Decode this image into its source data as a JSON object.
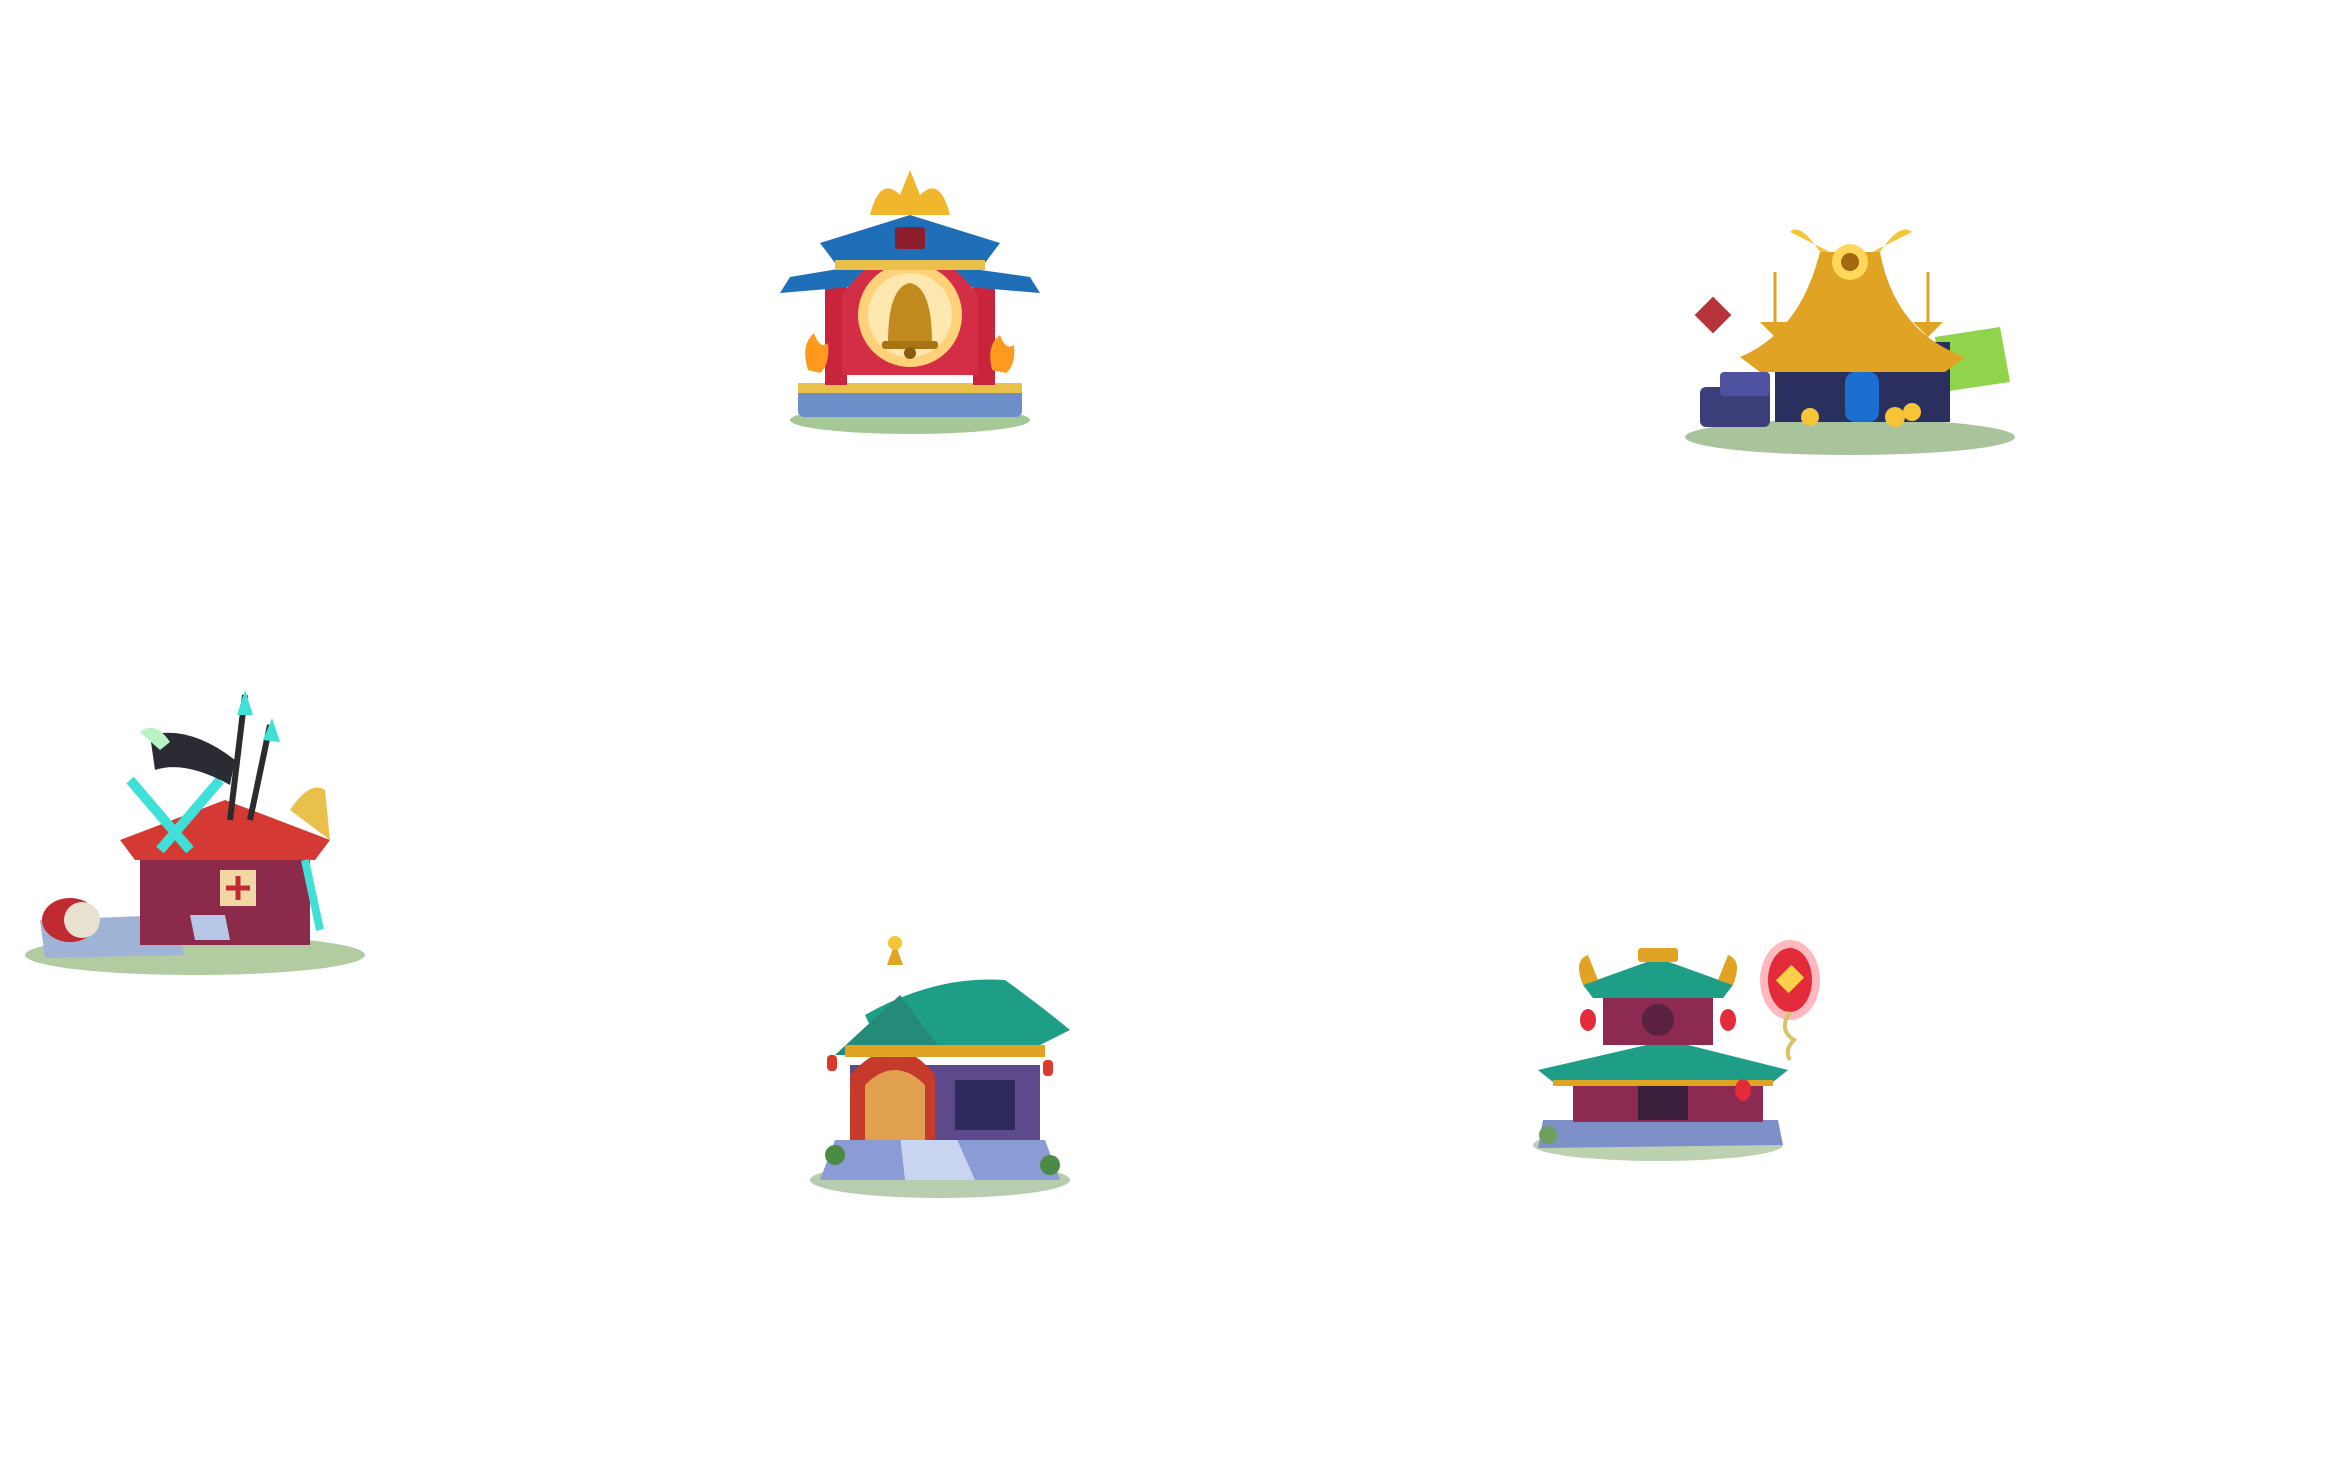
{
  "scene": {
    "background_color": "#ffffff",
    "buildings": [
      {
        "id": "bell-shrine",
        "icon": "bell-shrine-icon",
        "accent": "#c8243c"
      },
      {
        "id": "merchant-hall",
        "icon": "merchant-hall-icon",
        "accent": "#e0a323"
      },
      {
        "id": "weapon-armory",
        "icon": "weapon-armory-icon",
        "accent": "#b82a2e"
      },
      {
        "id": "jade-temple",
        "icon": "jade-temple-icon",
        "accent": "#1f9e87"
      },
      {
        "id": "lantern-pavilion",
        "icon": "lantern-pavilion-icon",
        "accent": "#e32b3c"
      }
    ]
  }
}
